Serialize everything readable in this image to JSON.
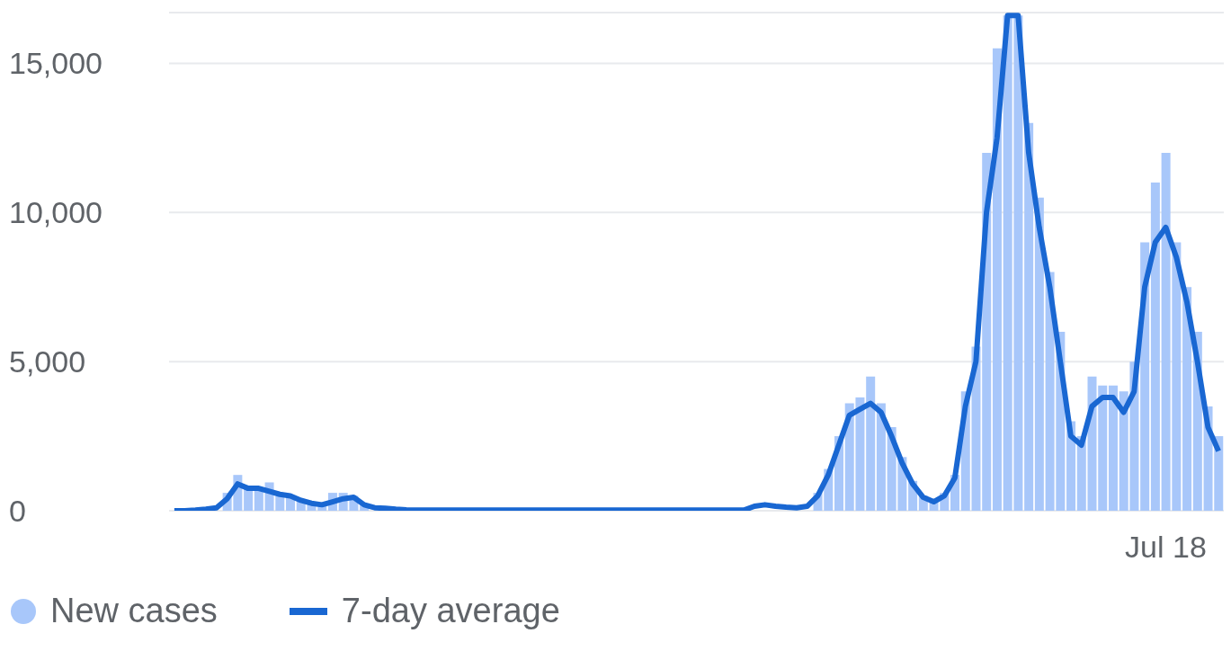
{
  "chart_data": {
    "type": "bar",
    "categories": [
      null,
      null,
      null,
      null,
      null,
      null,
      null,
      null,
      null,
      null,
      null,
      null,
      null,
      null,
      null,
      null,
      null,
      null,
      null,
      null,
      null,
      null,
      null,
      null,
      null,
      null,
      null,
      null,
      null,
      null,
      null,
      null,
      null,
      null,
      null,
      null,
      null,
      null,
      null,
      null,
      null,
      null,
      null,
      null,
      null,
      null,
      null,
      null,
      null,
      null,
      null,
      null,
      null,
      null,
      null,
      null,
      null,
      null,
      null,
      null,
      null,
      null,
      null,
      null,
      null,
      null,
      null,
      null,
      null,
      null,
      null,
      null,
      null,
      null,
      null,
      null,
      null,
      null,
      null,
      null,
      null,
      null,
      null,
      null,
      null,
      null,
      null,
      null,
      null,
      null,
      null,
      null,
      null,
      null,
      "Jul 18",
      null,
      null,
      null,
      null,
      null
    ],
    "series": [
      {
        "name": "New cases",
        "color": "#a8c7fa",
        "values": [
          null,
          null,
          null,
          null,
          null,
          600,
          1200,
          800,
          700,
          950,
          500,
          450,
          300,
          250,
          200,
          600,
          600,
          500,
          200,
          null,
          null,
          null,
          null,
          null,
          null,
          null,
          null,
          null,
          null,
          null,
          null,
          null,
          null,
          null,
          null,
          null,
          null,
          null,
          null,
          null,
          null,
          null,
          null,
          null,
          null,
          null,
          null,
          null,
          null,
          null,
          null,
          null,
          null,
          null,
          null,
          null,
          null,
          null,
          null,
          null,
          null,
          600,
          1400,
          2500,
          3600,
          3800,
          4500,
          3600,
          2800,
          1800,
          1000,
          500,
          300,
          600,
          1200,
          4000,
          5500,
          12000,
          15500,
          16600,
          16600,
          13000,
          10500,
          8000,
          6000,
          3000,
          2500,
          4500,
          4200,
          4200,
          4000,
          5000,
          9000,
          11000,
          12000,
          9000,
          7500,
          6000,
          3500,
          2500
        ]
      },
      {
        "name": "7-day average",
        "type": "line",
        "color": "#1967d2",
        "values": [
          0,
          0,
          20,
          50,
          100,
          400,
          900,
          750,
          750,
          650,
          550,
          500,
          350,
          250,
          200,
          300,
          400,
          450,
          200,
          100,
          80,
          50,
          30,
          20,
          20,
          20,
          20,
          20,
          20,
          20,
          20,
          20,
          20,
          20,
          20,
          20,
          20,
          20,
          20,
          20,
          20,
          20,
          20,
          20,
          20,
          20,
          20,
          20,
          20,
          20,
          20,
          20,
          20,
          20,
          20,
          150,
          200,
          150,
          120,
          100,
          150,
          500,
          1200,
          2200,
          3200,
          3400,
          3600,
          3300,
          2500,
          1600,
          900,
          450,
          300,
          500,
          1100,
          3500,
          5000,
          10000,
          12500,
          16600,
          16600,
          12000,
          9500,
          7500,
          5000,
          2500,
          2200,
          3500,
          3800,
          3800,
          3300,
          4000,
          7500,
          9000,
          9500,
          8500,
          7000,
          5000,
          2800,
          2000
        ]
      }
    ],
    "ylim": [
      0,
      16700
    ],
    "yticks": [
      0,
      {
        "value": 5000,
        "label": "5,000"
      },
      {
        "value": 10000,
        "label": "10,000"
      },
      {
        "value": 15000,
        "label": "15,000"
      }
    ],
    "grid": "y",
    "legend": "bottom left",
    "marker": "none",
    "line_style": "solid"
  }
}
